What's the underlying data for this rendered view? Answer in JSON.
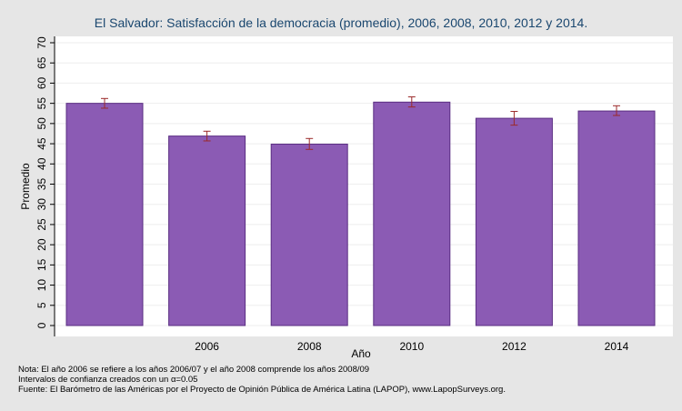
{
  "chart_data": {
    "type": "bar",
    "title": "El Salvador: Satisfacción de la democracia (promedio), 2006, 2008, 2010, 2012 y 2014.",
    "xlabel": "Año",
    "ylabel": "Promedio",
    "ylim": [
      0,
      70
    ],
    "yticks": [
      0,
      5,
      10,
      15,
      20,
      25,
      30,
      35,
      40,
      45,
      50,
      55,
      60,
      65,
      70
    ],
    "categories": [
      "",
      "2006",
      "2008",
      "2010",
      "2012",
      "2014"
    ],
    "values": [
      55.0,
      46.9,
      44.9,
      55.3,
      51.3,
      53.1
    ],
    "ci_low": [
      53.8,
      45.7,
      43.6,
      54.1,
      49.6,
      52.0
    ],
    "ci_high": [
      56.2,
      48.1,
      46.3,
      56.6,
      53.0,
      54.4
    ],
    "grid": true,
    "bar_color": "#8b5bb4",
    "bar_edge_color": "#5a2d82",
    "error_bar_color": "#9b2a2a"
  },
  "notes": {
    "line1": "Nota: El año 2006 se refiere a los años 2006/07 y el año 2008 comprende los años 2008/09",
    "line2": "Intervalos de confianza creados con un α=0.05",
    "line3": "Fuente: El Barómetro de las Américas por el Proyecto de Opinión Pública de América Latina (LAPOP), www.LapopSurveys.org."
  }
}
